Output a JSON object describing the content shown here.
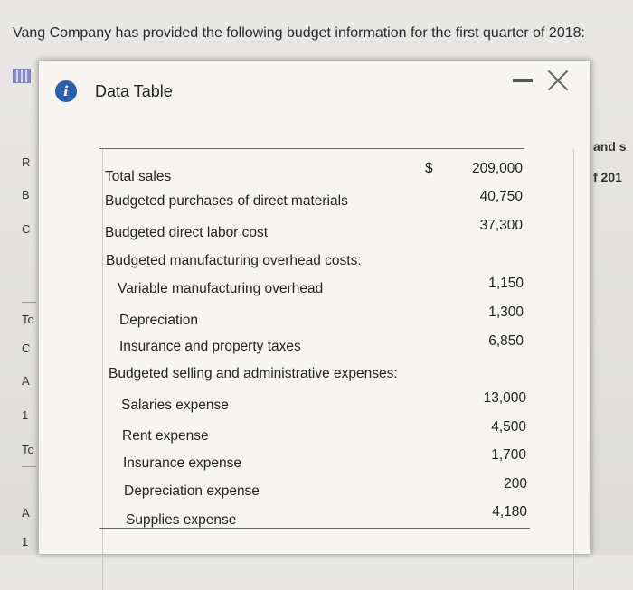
{
  "page": {
    "heading": "Vang Company has provided the following budget information for the first quarter of 2018:"
  },
  "background_fragments": {
    "left": [
      "R",
      "B",
      "C",
      "To",
      "C",
      "A",
      "1",
      "To",
      "A",
      "1"
    ],
    "right": [
      "and s",
      "f 201"
    ]
  },
  "dialog": {
    "title": "Data Table",
    "icons": [
      "info-icon",
      "minimize-icon",
      "close-icon"
    ]
  },
  "table": {
    "currency_symbol": "$",
    "rows": [
      {
        "label": "Total sales",
        "value": "209,000"
      },
      {
        "label": "Budgeted purchases of direct materials",
        "value": "40,750"
      },
      {
        "label": "Budgeted direct labor cost",
        "value": "37,300"
      },
      {
        "label": "Budgeted manufacturing overhead costs:",
        "value": ""
      },
      {
        "label": "Variable manufacturing overhead",
        "value": "1,150"
      },
      {
        "label": "Depreciation",
        "value": "1,300"
      },
      {
        "label": "Insurance and property taxes",
        "value": "6,850"
      },
      {
        "label": "Budgeted selling and administrative expenses:",
        "value": ""
      },
      {
        "label": "Salaries expense",
        "value": "13,000"
      },
      {
        "label": "Rent expense",
        "value": "4,500"
      },
      {
        "label": "Insurance expense",
        "value": "1,700"
      },
      {
        "label": "Depreciation expense",
        "value": "200"
      },
      {
        "label": "Supplies expense",
        "value": "4,180"
      }
    ]
  }
}
